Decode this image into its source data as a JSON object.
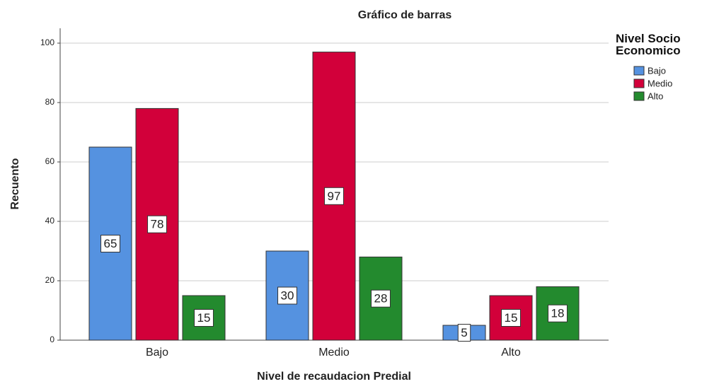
{
  "chart_data": {
    "type": "bar",
    "title": "Gráfico de barras",
    "x_label": "Nivel de recaudacion Predial",
    "y_label": "Recuento",
    "legend_title": "Nivel Socio Economico",
    "legend": "right",
    "categories": [
      "Bajo",
      "Medio",
      "Alto"
    ],
    "series": [
      {
        "name": "Bajo",
        "color": "#5592e0",
        "values": [
          65,
          30,
          5
        ]
      },
      {
        "name": "Medio",
        "color": "#d2003a",
        "values": [
          78,
          97,
          15
        ]
      },
      {
        "name": "Alto",
        "color": "#238a2e",
        "values": [
          15,
          28,
          18
        ]
      }
    ],
    "ylim": [
      0,
      105
    ],
    "yticks": [
      0,
      20,
      40,
      60,
      80,
      100
    ],
    "grid": true
  }
}
